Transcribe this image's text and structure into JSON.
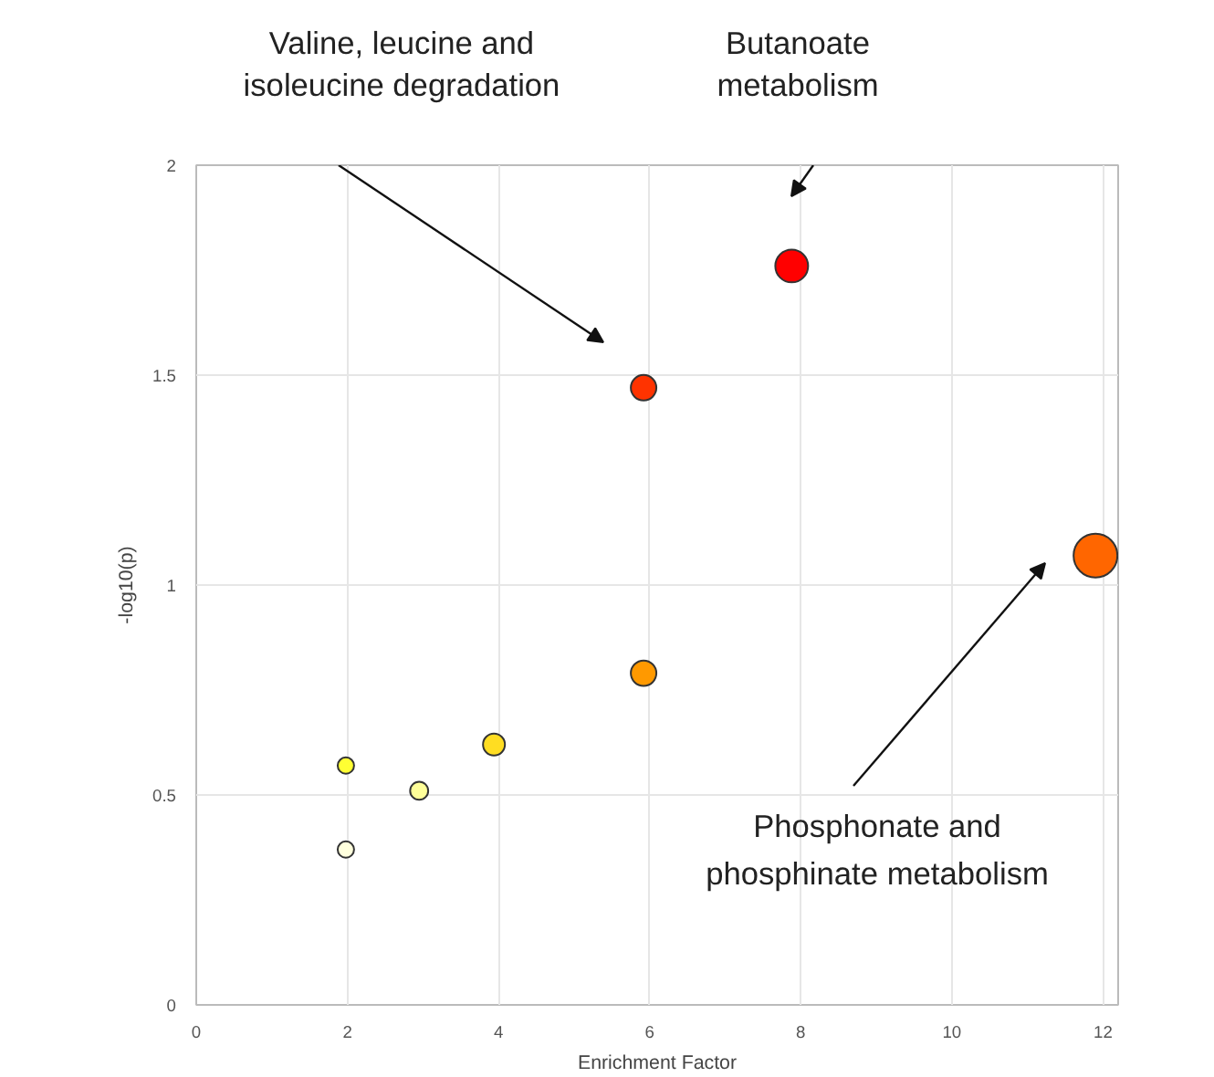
{
  "chart_data": {
    "type": "bubble",
    "xlabel": "Enrichment Factor",
    "ylabel": "-log10(p)",
    "x": [
      1.98,
      1.98,
      2.95,
      3.94,
      5.92,
      5.92,
      7.88,
      11.9
    ],
    "values": [
      0.37,
      0.57,
      0.51,
      0.62,
      0.79,
      1.47,
      1.76,
      1.07
    ],
    "sizes": [
      0.14,
      0.14,
      0.17,
      0.25,
      0.34,
      0.34,
      0.56,
      1
    ],
    "colors": [
      "#ffffdd",
      "#ffff33",
      "#ffff99",
      "#ffdd22",
      "#ff9900",
      "#ff3300",
      "#ff0000",
      "#ff6600"
    ],
    "xlim": [
      0,
      12.2
    ],
    "ylim": [
      0,
      2
    ],
    "xticks": [
      0,
      2,
      4,
      6,
      8,
      10,
      12
    ],
    "yticks": [
      0,
      0.5,
      1,
      1.5,
      2
    ],
    "grid": true,
    "annotations": [
      "Valine, leucine and\nisoleucine degradation",
      "Butanoate\nmetabolism",
      "Phosphonate and\nphosphinate metabolism"
    ]
  }
}
